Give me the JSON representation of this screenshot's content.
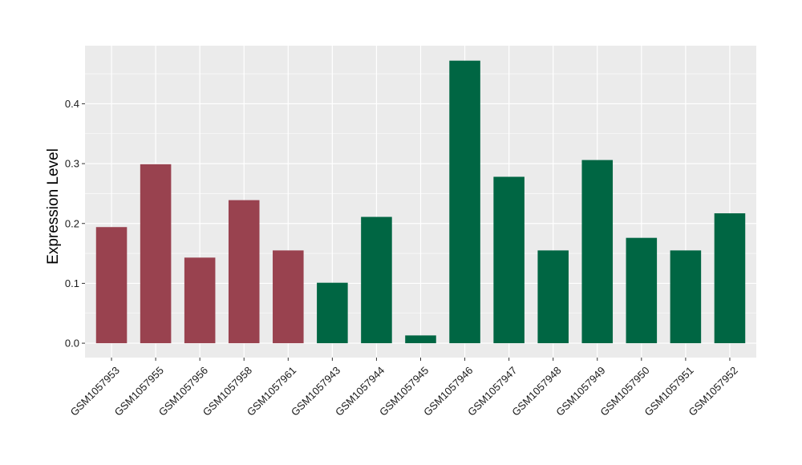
{
  "chart_data": {
    "type": "bar",
    "title": "",
    "xlabel": "",
    "ylabel": "Expression Level",
    "ylim": [
      -0.024,
      0.497
    ],
    "yticks": [
      0.0,
      0.1,
      0.2,
      0.3,
      0.4
    ],
    "ytick_labels": [
      "0.0",
      "0.1",
      "0.2",
      "0.3",
      "0.4"
    ],
    "grid": true,
    "categories": [
      "GSM1057953",
      "GSM1057955",
      "GSM1057956",
      "GSM1057958",
      "GSM1057961",
      "GSM1057943",
      "GSM1057944",
      "GSM1057945",
      "GSM1057946",
      "GSM1057947",
      "GSM1057948",
      "GSM1057949",
      "GSM1057950",
      "GSM1057951",
      "GSM1057952"
    ],
    "values": [
      0.194,
      0.299,
      0.143,
      0.239,
      0.155,
      0.101,
      0.211,
      0.013,
      0.472,
      0.278,
      0.155,
      0.306,
      0.176,
      0.155,
      0.217
    ],
    "group_colors": [
      "#99424f",
      "#99424f",
      "#99424f",
      "#99424f",
      "#99424f",
      "#006643",
      "#006643",
      "#006643",
      "#006643",
      "#006643",
      "#006643",
      "#006643",
      "#006643",
      "#006643",
      "#006643"
    ],
    "panel_background": "#ebebeb",
    "grid_color": "#ffffff"
  }
}
